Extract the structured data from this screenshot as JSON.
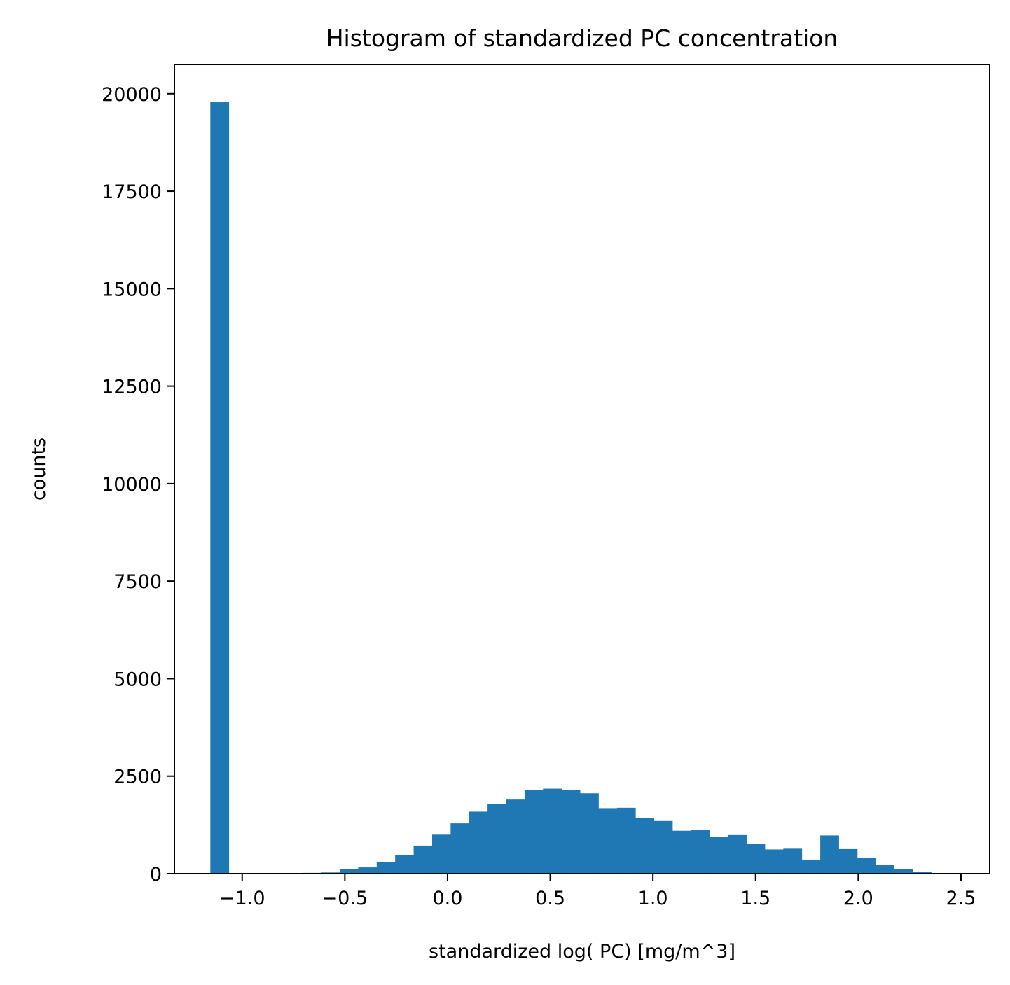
{
  "chart_data": {
    "type": "bar",
    "title": "Histogram of standardized PC concentration",
    "xlabel": "standardized log( PC) [mg/m^3]",
    "ylabel": "counts",
    "xlim": [
      -1.33,
      2.64
    ],
    "ylim": [
      0,
      20750
    ],
    "grid": false,
    "legend": "none",
    "bar_color": "#1f77b4",
    "bin_start": -1.155,
    "bin_width": 0.09,
    "values": [
      19780,
      0,
      0,
      0,
      0,
      20,
      30,
      110,
      160,
      290,
      480,
      720,
      1000,
      1290,
      1590,
      1790,
      1900,
      2140,
      2180,
      2140,
      2060,
      1680,
      1690,
      1420,
      1350,
      1100,
      1130,
      950,
      990,
      760,
      620,
      640,
      360,
      980,
      630,
      410,
      230,
      120,
      50,
      10
    ],
    "x_ticks": [
      {
        "value": -1.0,
        "label": "−1.0"
      },
      {
        "value": -0.5,
        "label": "−0.5"
      },
      {
        "value": 0.0,
        "label": "0.0"
      },
      {
        "value": 0.5,
        "label": "0.5"
      },
      {
        "value": 1.0,
        "label": "1.0"
      },
      {
        "value": 1.5,
        "label": "1.5"
      },
      {
        "value": 2.0,
        "label": "2.0"
      },
      {
        "value": 2.5,
        "label": "2.5"
      }
    ],
    "y_ticks": [
      {
        "value": 0,
        "label": "0"
      },
      {
        "value": 2500,
        "label": "2500"
      },
      {
        "value": 5000,
        "label": "5000"
      },
      {
        "value": 7500,
        "label": "7500"
      },
      {
        "value": 10000,
        "label": "10000"
      },
      {
        "value": 12500,
        "label": "12500"
      },
      {
        "value": 15000,
        "label": "15000"
      },
      {
        "value": 17500,
        "label": "17500"
      },
      {
        "value": 20000,
        "label": "20000"
      }
    ]
  }
}
